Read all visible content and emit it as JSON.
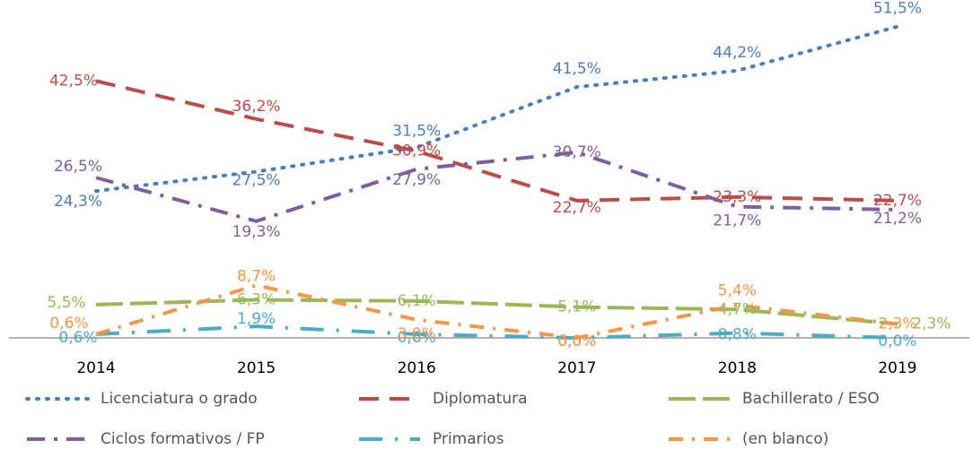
{
  "chart_data": {
    "type": "line",
    "categories": [
      "2014",
      "2015",
      "2016",
      "2017",
      "2018",
      "2019"
    ],
    "ylim": [
      0,
      55
    ],
    "series": [
      {
        "name": "Licenciatura o grado",
        "color": "#4a7ebb",
        "values": [
          24.3,
          27.5,
          31.5,
          41.5,
          44.2,
          51.5
        ],
        "value_labels": [
          "24,3%",
          "27,5%",
          "31,5%",
          "41,5%",
          "44,2%",
          "51,5%"
        ]
      },
      {
        "name": "Diplomatura",
        "color": "#be4b48",
        "values": [
          42.5,
          36.2,
          30.9,
          22.7,
          23.3,
          22.7
        ],
        "value_labels": [
          "42,5%",
          "36,2%",
          "30,9%",
          "22,7%",
          "23,3%",
          "22,7%"
        ]
      },
      {
        "name": "Bachillerato / ESO",
        "color": "#98b954",
        "values": [
          5.5,
          6.3,
          6.1,
          5.1,
          4.7,
          2.3
        ],
        "value_labels": [
          "5,5%",
          "6,3%",
          "6,1%",
          "5,1%",
          "4,7%",
          "2,3%"
        ]
      },
      {
        "name": "Ciclos formativos / FP",
        "color": "#7d5fa0",
        "values": [
          26.5,
          19.3,
          27.9,
          30.7,
          21.7,
          21.2
        ],
        "value_labels": [
          "26,5%",
          "19,3%",
          "27,9%",
          "30,7%",
          "21,7%",
          "21,2%"
        ]
      },
      {
        "name": "Primarios",
        "color": "#4bacc6",
        "values": [
          0.6,
          1.9,
          0.6,
          0.0,
          0.8,
          0.0
        ],
        "value_labels": [
          "0,6%",
          "1,9%",
          "0,6%",
          "0,0%",
          "0,8%",
          "0,0%"
        ]
      },
      {
        "name": "(en blanco)",
        "color": "#f79646",
        "values": [
          0.6,
          8.7,
          3.0,
          0.0,
          5.4,
          2.3
        ],
        "value_labels": [
          "0,6%",
          "8,7%",
          "3,0%",
          "0,0%",
          "5,4%",
          "2,3%"
        ]
      }
    ]
  }
}
